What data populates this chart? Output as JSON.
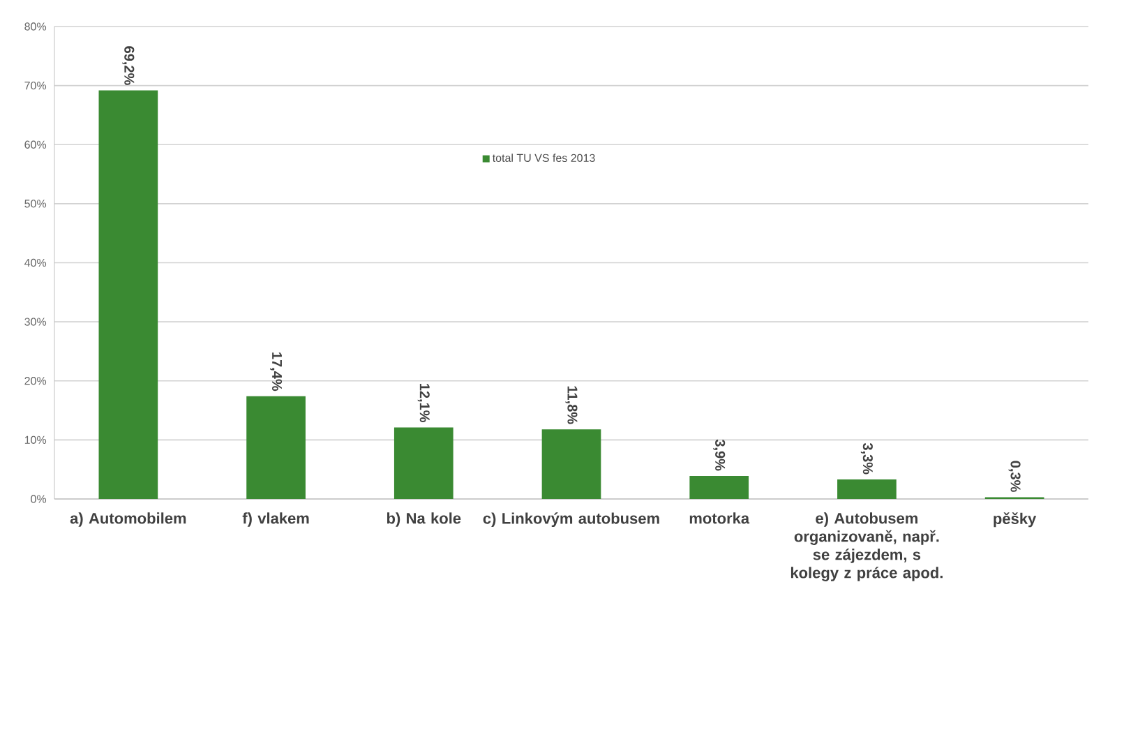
{
  "chart_data": {
    "type": "bar",
    "categories": [
      "a) Automobilem",
      "f) vlakem",
      "b) Na kole",
      "c) Linkovým autobusem",
      "motorka",
      "e) Autobusem organizovaně, např. se zájezdem, s kolegy z práce apod.",
      "pěšky"
    ],
    "series": [
      {
        "name": "total TU VS fes 2013",
        "color": "#3a8a32",
        "values": [
          69.2,
          17.4,
          12.1,
          11.8,
          3.9,
          3.3,
          0.3
        ],
        "value_labels": [
          "69,2%",
          "17,4%",
          "12,1%",
          "11,8%",
          "3,9%",
          "3,3%",
          "0,3%"
        ]
      }
    ],
    "ylim": [
      0,
      80
    ],
    "yticks": [
      {
        "value": 0,
        "label": "0%"
      },
      {
        "value": 10,
        "label": "10%"
      },
      {
        "value": 20,
        "label": "20%"
      },
      {
        "value": 30,
        "label": "30%"
      },
      {
        "value": 40,
        "label": "40%"
      },
      {
        "value": 50,
        "label": "50%"
      },
      {
        "value": 60,
        "label": "60%"
      },
      {
        "value": 70,
        "label": "70%"
      },
      {
        "value": 80,
        "label": "80%"
      }
    ],
    "grid": "y",
    "legend": "top"
  }
}
